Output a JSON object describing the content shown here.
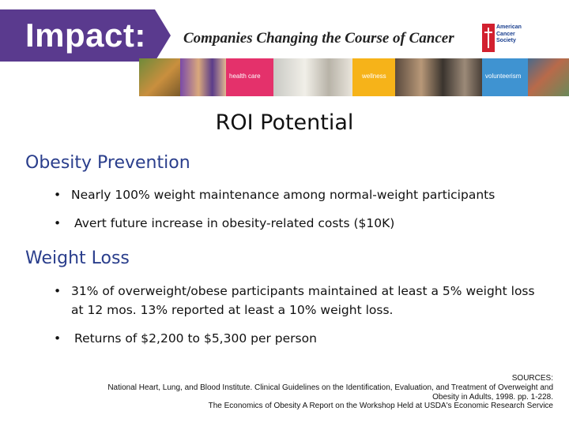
{
  "banner": {
    "impact": "Impact:",
    "tagline": "Companies Changing the Course of Cancer",
    "logo_text": [
      "American",
      "Cancer",
      "Society"
    ],
    "panels": [
      "health care",
      "wellness",
      "volunteerism"
    ],
    "colors": {
      "purple": "#5a3a8e",
      "health_care": "#e4316b",
      "wellness": "#f6b319",
      "volunteerism": "#3f93d1",
      "logo_red": "#d2202f"
    }
  },
  "title": "ROI Potential",
  "sections": [
    {
      "heading": "Obesity Prevention",
      "bullets": [
        "Nearly 100% weight maintenance among normal-weight participants",
        "Avert future increase in obesity-related costs ($10K)"
      ]
    },
    {
      "heading": "Weight Loss",
      "bullets": [
        "31% of overweight/obese participants maintained at least a 5% weight loss",
        "at 12 mos. 13% reported at least a 10% weight loss.",
        "Returns of $2,200 to $5,300 per person"
      ]
    }
  ],
  "bullet_char": "•",
  "sources": [
    "SOURCES:",
    "National Heart, Lung, and Blood Institute. Clinical Guidelines on the Identification, Evaluation, and Treatment of Overweight and",
    "Obesity in Adults, 1998. pp. 1-228.",
    "The Economics of Obesity A Report on the Workshop Held at USDA's Economic Research Service"
  ]
}
